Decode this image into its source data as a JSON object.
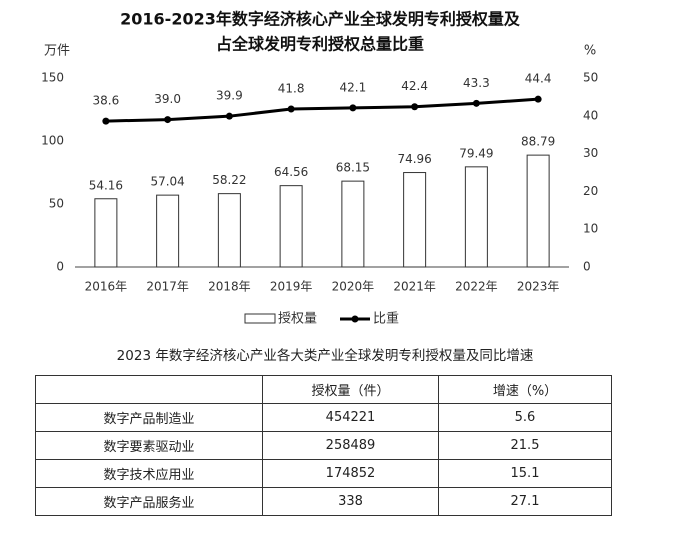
{
  "chart_data": {
    "type": "bar_line",
    "title": [
      "2016-2023年数字经济核心产业全球发明专利授权量及",
      "占全球发明专利授权总量比重"
    ],
    "y_label": "万件",
    "y2_label": "%",
    "categories": [
      "2016年",
      "2017年",
      "2018年",
      "2019年",
      "2020年",
      "2021年",
      "2022年",
      "2023年"
    ],
    "series": [
      {
        "name": "授权量",
        "type": "bar",
        "color": "#ffffff",
        "values": [
          54.16,
          57.04,
          58.22,
          64.56,
          68.15,
          74.96,
          79.49,
          88.79
        ]
      },
      {
        "name": "比重",
        "type": "line",
        "axis": "y2",
        "color": "#000000",
        "values": [
          38.6,
          39.0,
          39.9,
          41.8,
          42.1,
          42.4,
          43.3,
          44.4
        ],
        "value_labels": [
          "38.6",
          "39.0",
          "39.9",
          "41.8",
          "42.1",
          "42.4",
          "43.3",
          "44.4"
        ]
      }
    ],
    "ylim": [
      0,
      150
    ],
    "yticks": [
      0,
      50,
      100,
      150
    ],
    "y2lim": [
      0,
      50
    ],
    "y2ticks": [
      0,
      10,
      20,
      30,
      40,
      50
    ],
    "grid": false
  },
  "table": {
    "title": "2023 年数字经济核心产业各大类产业全球发明专利授权量及同比增速",
    "header": [
      "授权量（件）",
      "增速（%）"
    ],
    "rows": [
      [
        "数字产品制造业",
        454221,
        5.6
      ],
      [
        "数字要素驱动业",
        258489,
        21.5
      ],
      [
        "数字技术应用业",
        174852,
        15.1
      ],
      [
        "数字产品服务业",
        338,
        27.1
      ]
    ]
  }
}
